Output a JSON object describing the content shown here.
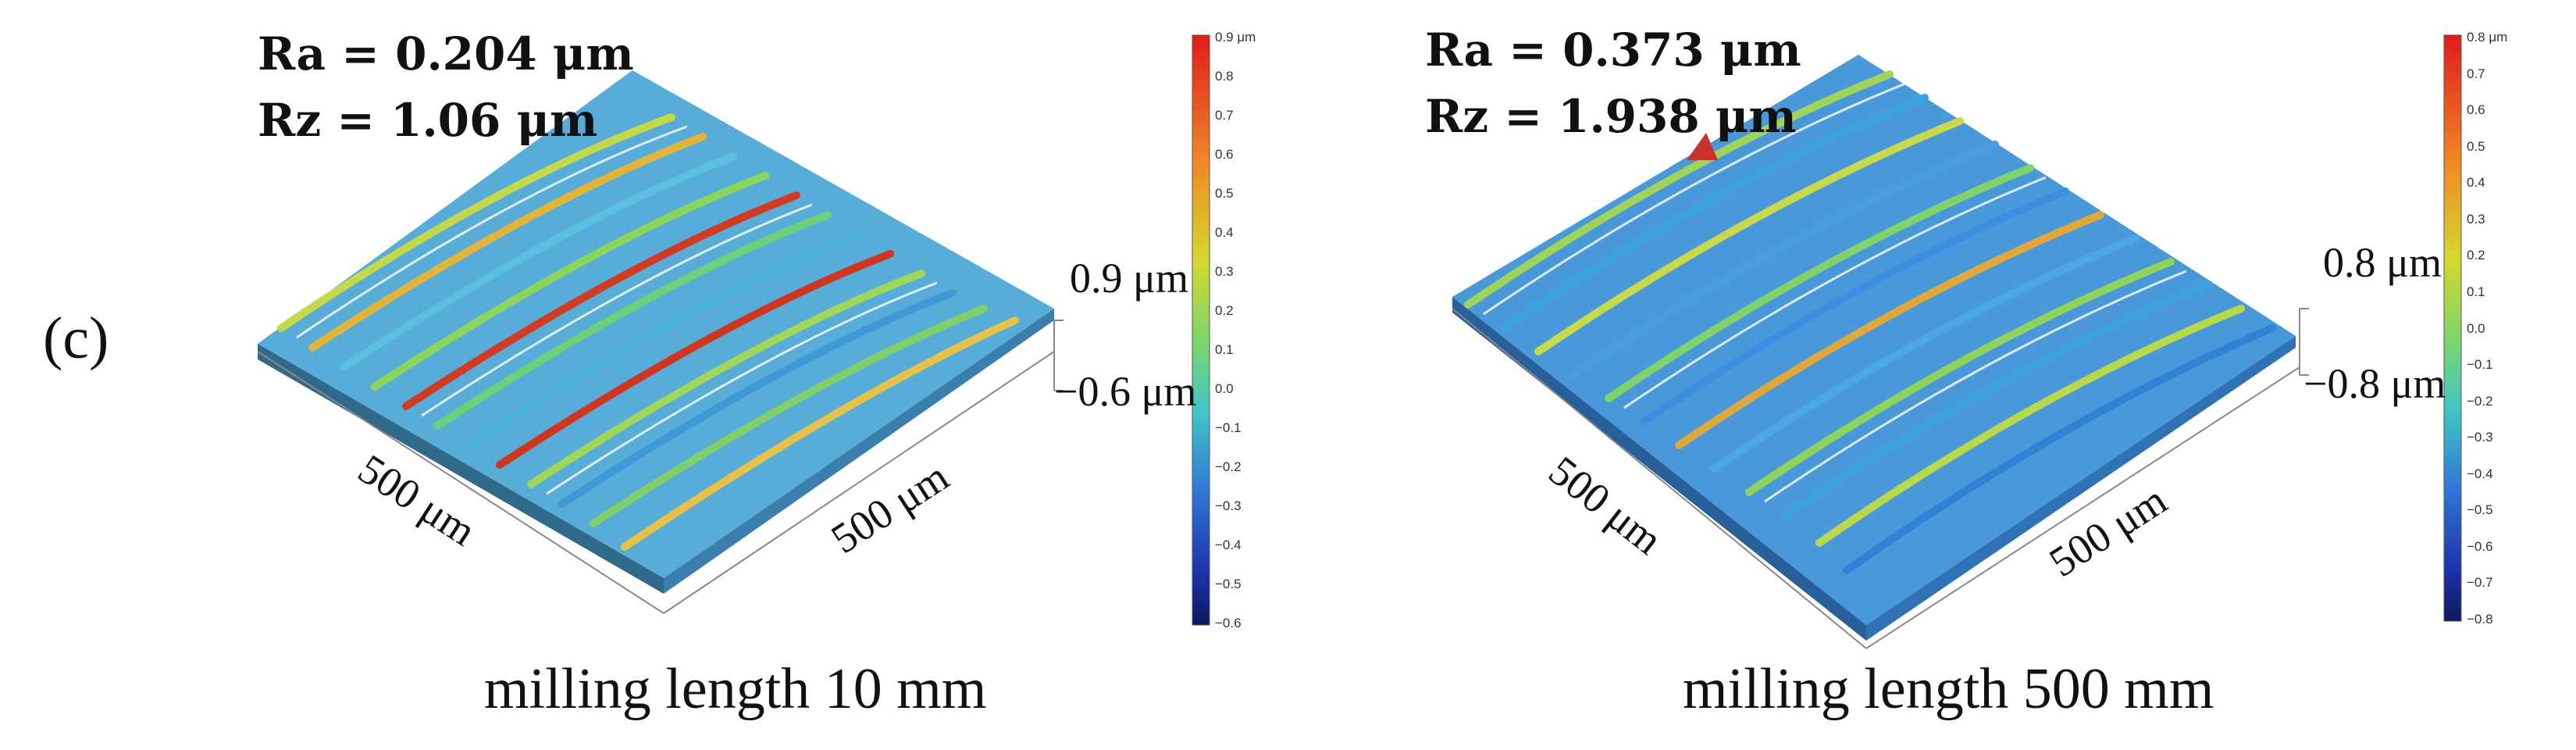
{
  "panel_label": "(c)",
  "plots": [
    {
      "id": "left",
      "ra": "Ra = 0.204 μm",
      "rz": "Rz = 1.06 μm",
      "z_top": "0.9 μm",
      "z_bottom": "−0.6 μm",
      "axis_x": "500 μm",
      "axis_y": "500 μm",
      "caption": "milling length 10 mm",
      "colorbar_ticks": [
        "0.9 μm",
        "0.8",
        "0.7",
        "0.6",
        "0.5",
        "0.4",
        "0.3",
        "0.2",
        "0.1",
        "0.0",
        "−0.1",
        "−0.2",
        "−0.3",
        "−0.4",
        "−0.5",
        "−0.6"
      ]
    },
    {
      "id": "right",
      "ra": "Ra = 0.373 μm",
      "rz": "Rz = 1.938 μm",
      "z_top": "0.8 μm",
      "z_bottom": "−0.8 μm",
      "axis_x": "500 μm",
      "axis_y": "500 μm",
      "caption": "milling length 500 mm",
      "colorbar_ticks": [
        "0.8 μm",
        "0.7",
        "0.6",
        "0.5",
        "0.4",
        "0.3",
        "0.2",
        "0.1",
        "0.0",
        "−0.1",
        "−0.2",
        "−0.3",
        "−0.4",
        "−0.5",
        "−0.6",
        "−0.7",
        "−0.8"
      ]
    }
  ],
  "colors": {
    "high": "#d7191c",
    "mid_high": "#fdae61",
    "mid": "#a6d96a",
    "mid_low": "#41b6c4",
    "low": "#2c7bb6",
    "lowest": "#08306b"
  }
}
